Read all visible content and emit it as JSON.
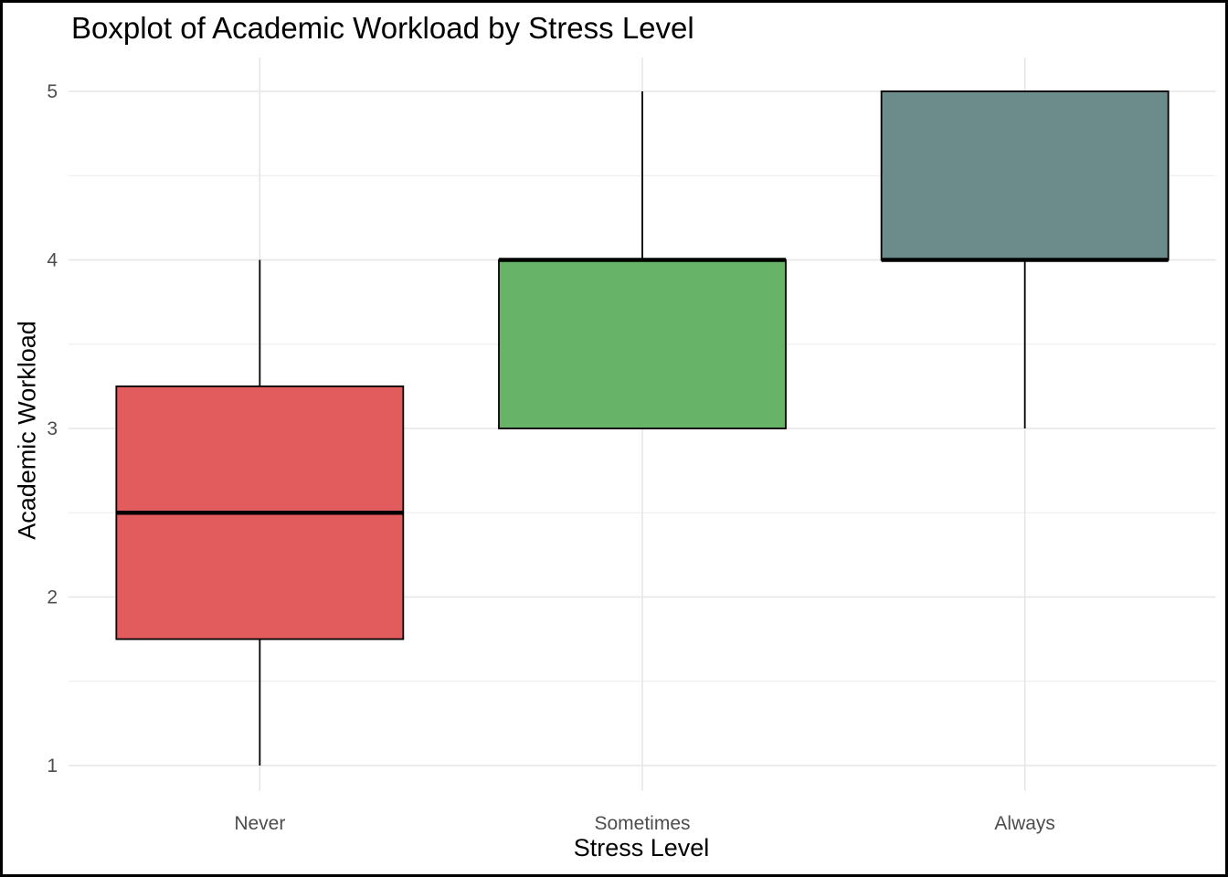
{
  "chart_data": {
    "type": "boxplot",
    "title": "Boxplot of Academic Workload by Stress Level",
    "xlabel": "Stress Level",
    "ylabel": "Academic Workload",
    "categories": [
      "Never",
      "Sometimes",
      "Always"
    ],
    "boxes": [
      {
        "category": "Never",
        "min": 1,
        "q1": 1.75,
        "median": 2.5,
        "q3": 3.25,
        "max": 4,
        "color": "#e25c5e"
      },
      {
        "category": "Sometimes",
        "min": 3,
        "q1": 3,
        "median": 4,
        "q3": 4,
        "max": 5,
        "color": "#67b367"
      },
      {
        "category": "Always",
        "min": 3,
        "q1": 4,
        "median": 4,
        "q3": 5,
        "max": 5,
        "color": "#6b8c8a"
      }
    ],
    "yticks": [
      1,
      2,
      3,
      4,
      5
    ],
    "ylim": [
      0.85,
      5.2
    ],
    "grid": true,
    "legend": "none"
  }
}
